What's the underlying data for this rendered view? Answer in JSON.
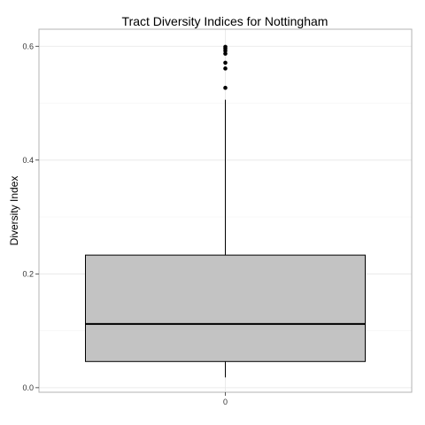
{
  "chart_data": {
    "type": "boxplot",
    "title": "Tract Diversity Indices for Nottingham",
    "xlabel": "",
    "ylabel": "Diversity Index",
    "categories": [
      "0"
    ],
    "y_ticks": [
      0.0,
      0.2,
      0.4,
      0.6
    ],
    "y_tick_labels": [
      "0.0",
      "0.2",
      "0.4",
      "0.6"
    ],
    "ylim": [
      -0.008,
      0.63
    ],
    "grid": true,
    "box": {
      "category": "0",
      "min": 0.018,
      "q1": 0.046,
      "median": 0.112,
      "q3": 0.233,
      "max": 0.506,
      "outliers": [
        0.527,
        0.561,
        0.571,
        0.587,
        0.592,
        0.596,
        0.599
      ]
    },
    "colors": {
      "box_fill": "#c3c3c3",
      "box_stroke": "#000000",
      "panel_border": "#b3b3b3",
      "grid_major": "#e6e6e6",
      "grid_minor": "#f2f2f2"
    }
  }
}
